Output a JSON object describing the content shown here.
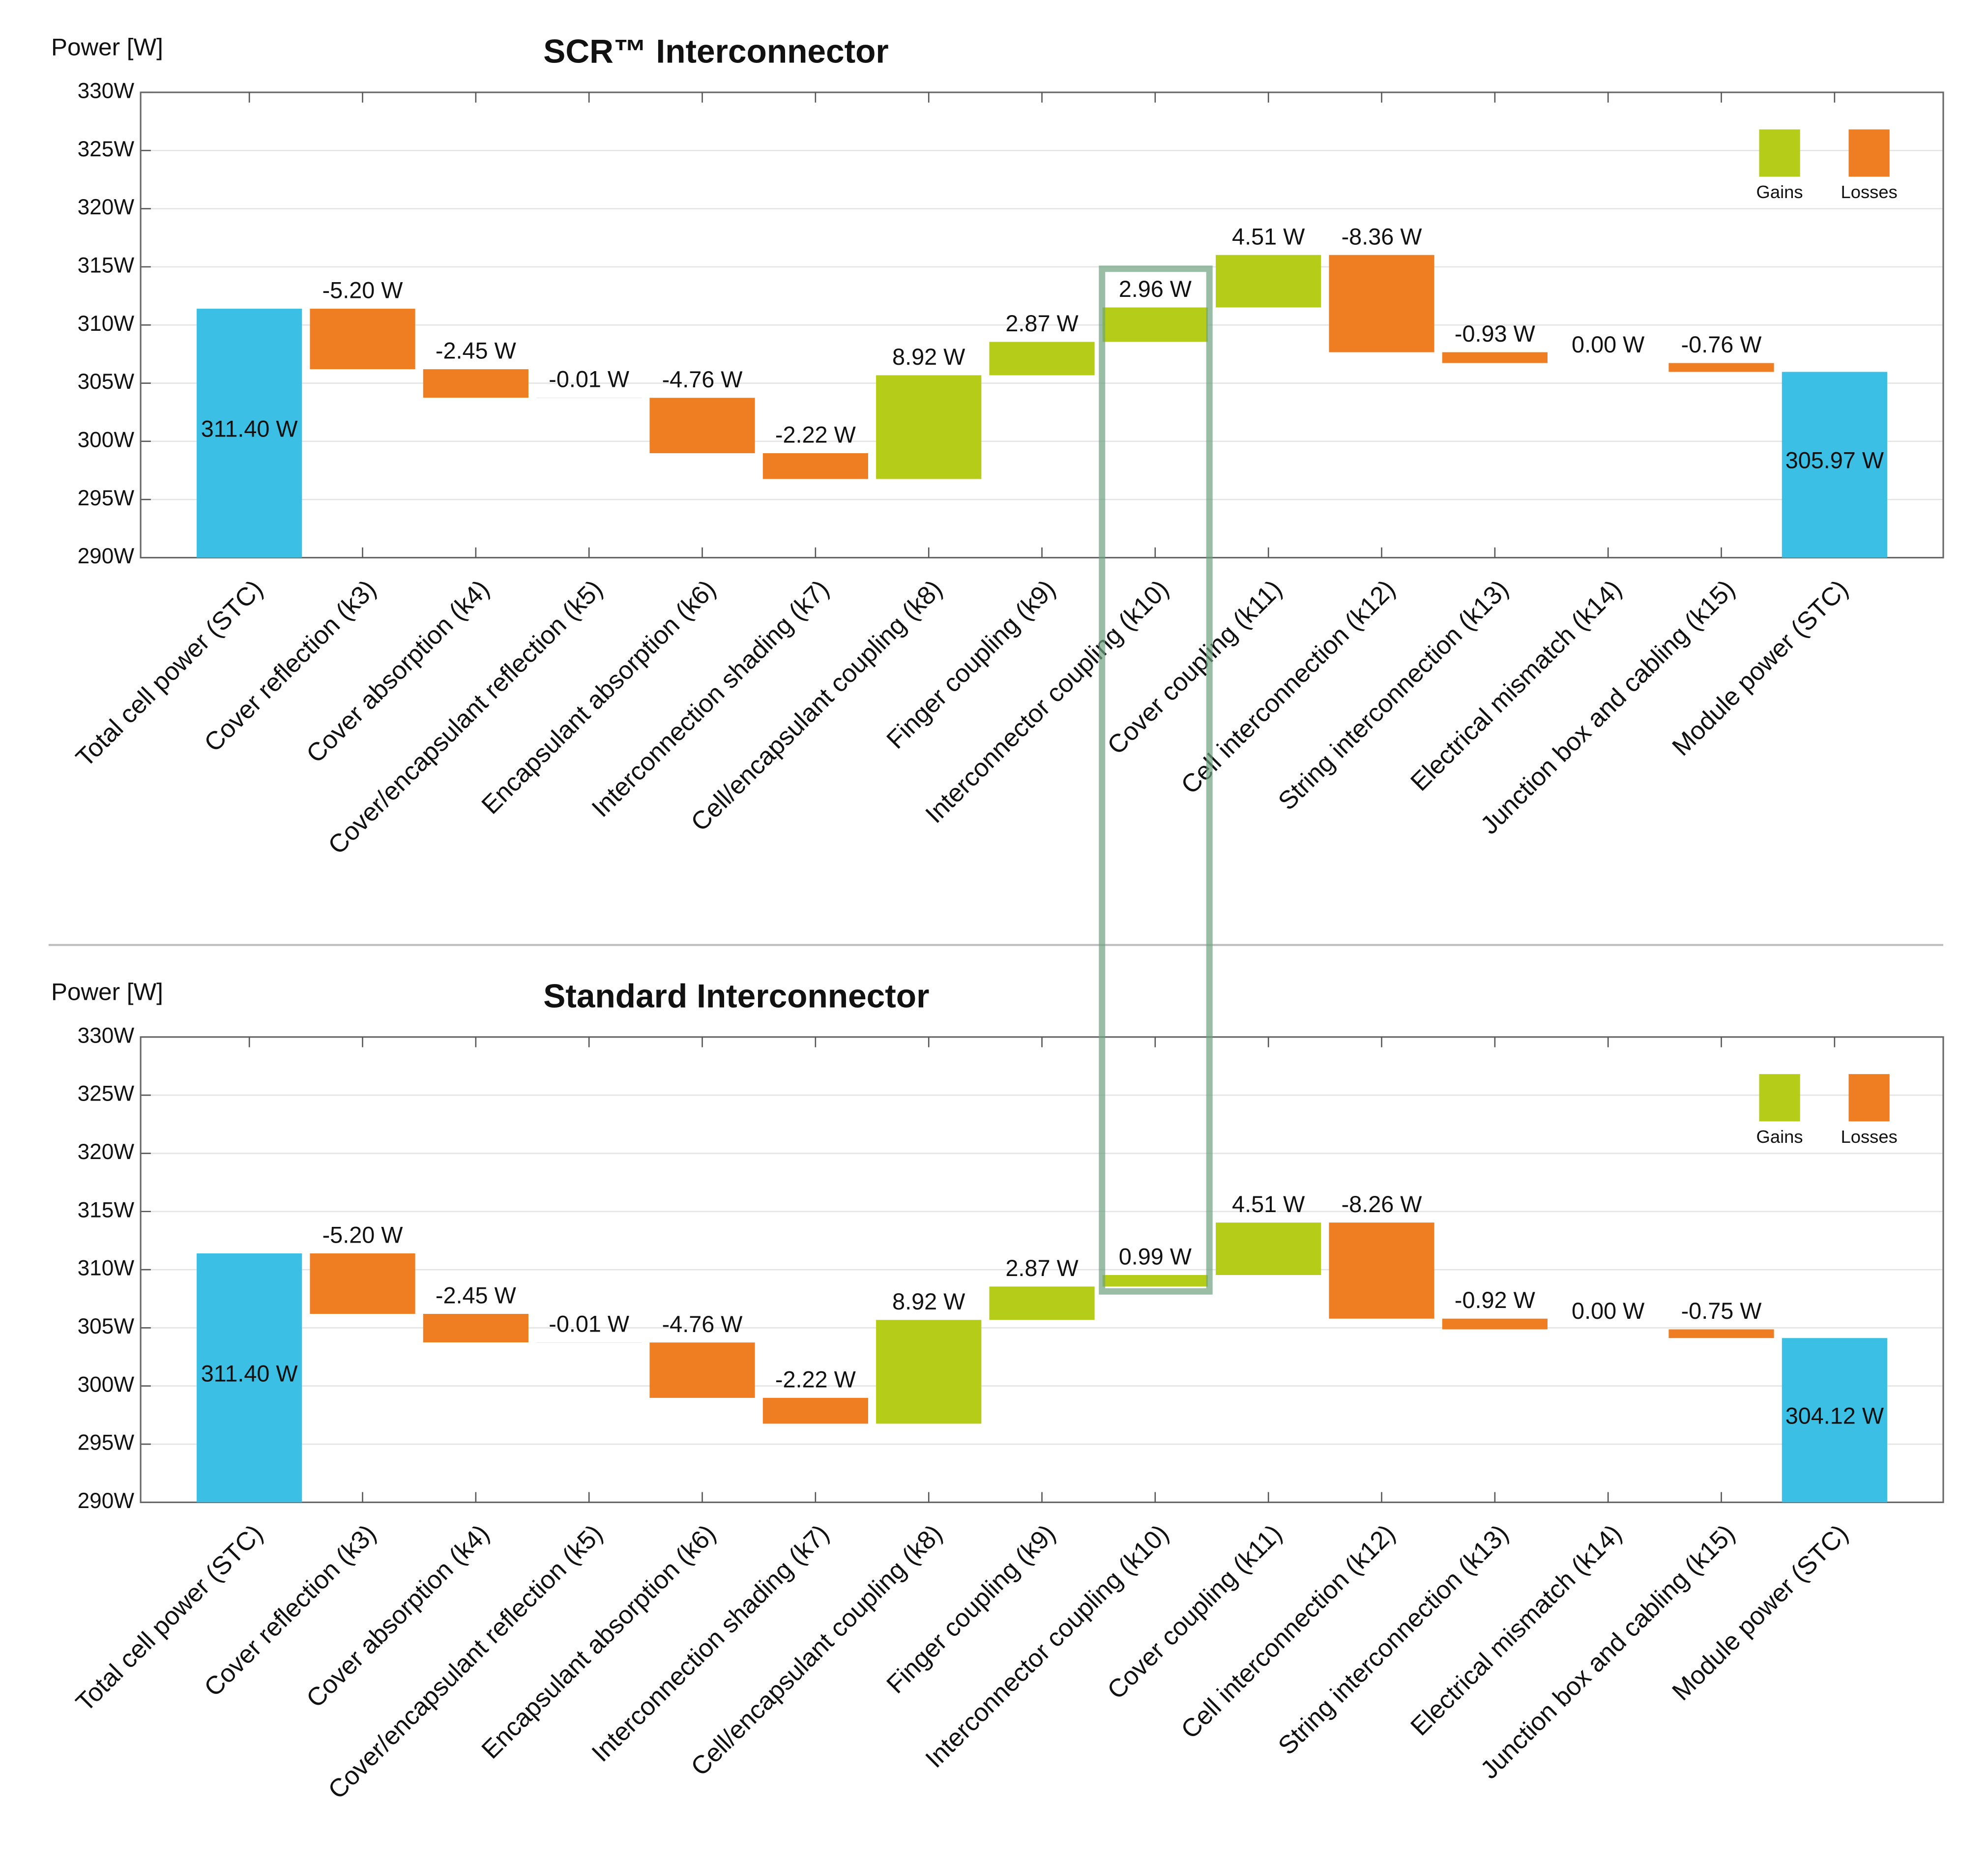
{
  "chart_data": [
    {
      "type": "waterfall",
      "title": "SCR™ Interconnector",
      "y_label": "Power [W]",
      "categories": [
        "Total cell power (STC)",
        "Cover reflection (k3)",
        "Cover absorption (k4)",
        "Cover/encapsulant reflection (k5)",
        "Encapsulant absorption (k6)",
        "Interconnection shading (k7)",
        "Cell/encapsulant coupling (k8)",
        "Finger coupling (k9)",
        "Interconnector coupling (k10)",
        "Cover coupling (k11)",
        "Cell interconnection (k12)",
        "String interconnection (k13)",
        "Electrical mismatch (k14)",
        "Junction box and cabling (k15)",
        "Module power (STC)"
      ],
      "measures": [
        "absolute",
        "relative",
        "relative",
        "relative",
        "relative",
        "relative",
        "relative",
        "relative",
        "relative",
        "relative",
        "relative",
        "relative",
        "relative",
        "relative",
        "total"
      ],
      "values": [
        311.4,
        -5.2,
        -2.45,
        -0.01,
        -4.76,
        -2.22,
        8.92,
        2.87,
        2.96,
        4.51,
        -8.36,
        -0.93,
        0.0,
        -0.76,
        305.97
      ],
      "value_labels": [
        "311.40 W",
        "-5.20 W",
        "-2.45 W",
        "-0.01 W",
        "-4.76 W",
        "-2.22 W",
        "8.92 W",
        "2.87 W",
        "2.96 W",
        "4.51 W",
        "-8.36 W",
        "-0.93 W",
        "0.00 W",
        "-0.76 W",
        "305.97 W"
      ],
      "total_color": "#3bbfe4",
      "legend": {
        "position": "top-right",
        "items": [
          {
            "name": "Gains",
            "color": "#b5cc18"
          },
          {
            "name": "Losses",
            "color": "#ef7d22"
          }
        ]
      },
      "ylim": [
        290,
        330
      ],
      "yticks": [
        {
          "value": 290,
          "label": "290W"
        },
        {
          "value": 295,
          "label": "295W"
        },
        {
          "value": 300,
          "label": "300W"
        },
        {
          "value": 305,
          "label": "305W"
        },
        {
          "value": 310,
          "label": "310W"
        },
        {
          "value": 315,
          "label": "315W"
        },
        {
          "value": 320,
          "label": "320W"
        },
        {
          "value": 325,
          "label": "325W"
        },
        {
          "value": 330,
          "label": "330W"
        }
      ],
      "grid": true
    },
    {
      "type": "waterfall",
      "title": "Standard Interconnector",
      "y_label": "Power [W]",
      "categories": [
        "Total cell power (STC)",
        "Cover reflection (k3)",
        "Cover absorption (k4)",
        "Cover/encapsulant reflection (k5)",
        "Encapsulant absorption (k6)",
        "Interconnection shading (k7)",
        "Cell/encapsulant coupling (k8)",
        "Finger coupling (k9)",
        "Interconnector coupling (k10)",
        "Cover coupling (k11)",
        "Cell interconnection (k12)",
        "String interconnection (k13)",
        "Electrical mismatch (k14)",
        "Junction box and cabling (k15)",
        "Module power (STC)"
      ],
      "measures": [
        "absolute",
        "relative",
        "relative",
        "relative",
        "relative",
        "relative",
        "relative",
        "relative",
        "relative",
        "relative",
        "relative",
        "relative",
        "relative",
        "relative",
        "total"
      ],
      "values": [
        311.4,
        -5.2,
        -2.45,
        -0.01,
        -4.76,
        -2.22,
        8.92,
        2.87,
        0.99,
        4.51,
        -8.26,
        -0.92,
        0.0,
        -0.75,
        304.12
      ],
      "value_labels": [
        "311.40 W",
        "-5.20 W",
        "-2.45 W",
        "-0.01 W",
        "-4.76 W",
        "-2.22 W",
        "8.92 W",
        "2.87 W",
        "0.99 W",
        "4.51 W",
        "-8.26 W",
        "-0.92 W",
        "0.00 W",
        "-0.75 W",
        "304.12 W"
      ],
      "total_color": "#3bbfe4",
      "legend": {
        "position": "top-right",
        "items": [
          {
            "name": "Gains",
            "color": "#b5cc18"
          },
          {
            "name": "Losses",
            "color": "#ef7d22"
          }
        ]
      },
      "ylim": [
        290,
        330
      ],
      "yticks": [
        {
          "value": 290,
          "label": "290W"
        },
        {
          "value": 295,
          "label": "295W"
        },
        {
          "value": 300,
          "label": "300W"
        },
        {
          "value": 305,
          "label": "305W"
        },
        {
          "value": 310,
          "label": "310W"
        },
        {
          "value": 315,
          "label": "315W"
        },
        {
          "value": 320,
          "label": "320W"
        },
        {
          "value": 325,
          "label": "325W"
        },
        {
          "value": 330,
          "label": "330W"
        }
      ],
      "grid": true
    }
  ]
}
